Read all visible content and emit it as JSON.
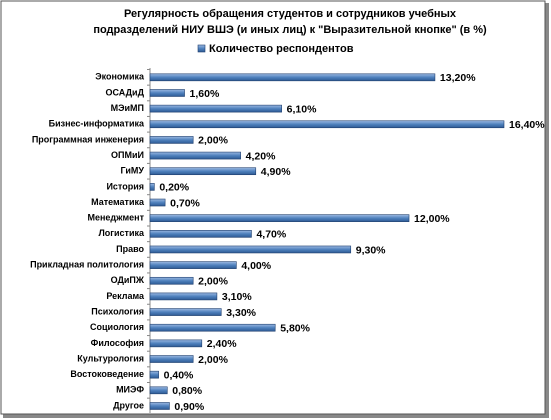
{
  "chart_data": {
    "type": "bar",
    "orientation": "horizontal",
    "title": [
      "Регулярность обращения студентов и сотрудников учебных",
      "подразделений НИУ ВШЭ (и иных лиц) к \"Выразительной кнопке\" (в %)"
    ],
    "categories": [
      "Экономика",
      "ОСАДиД",
      "МЭиМП",
      "Бизнес-информатика",
      "Программная инженерия",
      "ОПМиИ",
      "ГиМУ",
      "История",
      "Математика",
      "Менеджмент",
      "Логистика",
      "Право",
      "Прикладная политология",
      "ОДиПЖ",
      "Реклама",
      "Психология",
      "Социология",
      "Философия",
      "Культурология",
      "Востоковедение",
      "МИЭФ",
      "Другое"
    ],
    "series": [
      {
        "name": "Количество респондентов",
        "color": "#4f81bd",
        "values": [
          13.2,
          1.6,
          6.1,
          16.4,
          2.0,
          4.2,
          4.9,
          0.2,
          0.7,
          12.0,
          4.7,
          9.3,
          4.0,
          2.0,
          3.1,
          3.3,
          5.8,
          2.4,
          2.0,
          0.4,
          0.8,
          0.9
        ],
        "value_labels": [
          "13,20%",
          "1,60%",
          "6,10%",
          "16,40%",
          "2,00%",
          "4,20%",
          "4,90%",
          "0,20%",
          "0,70%",
          "12,00%",
          "4,70%",
          "9,30%",
          "4,00%",
          "2,00%",
          "3,10%",
          "3,30%",
          "5,80%",
          "2,40%",
          "2,00%",
          "0,40%",
          "0,80%",
          "0,90%"
        ]
      }
    ]
  }
}
